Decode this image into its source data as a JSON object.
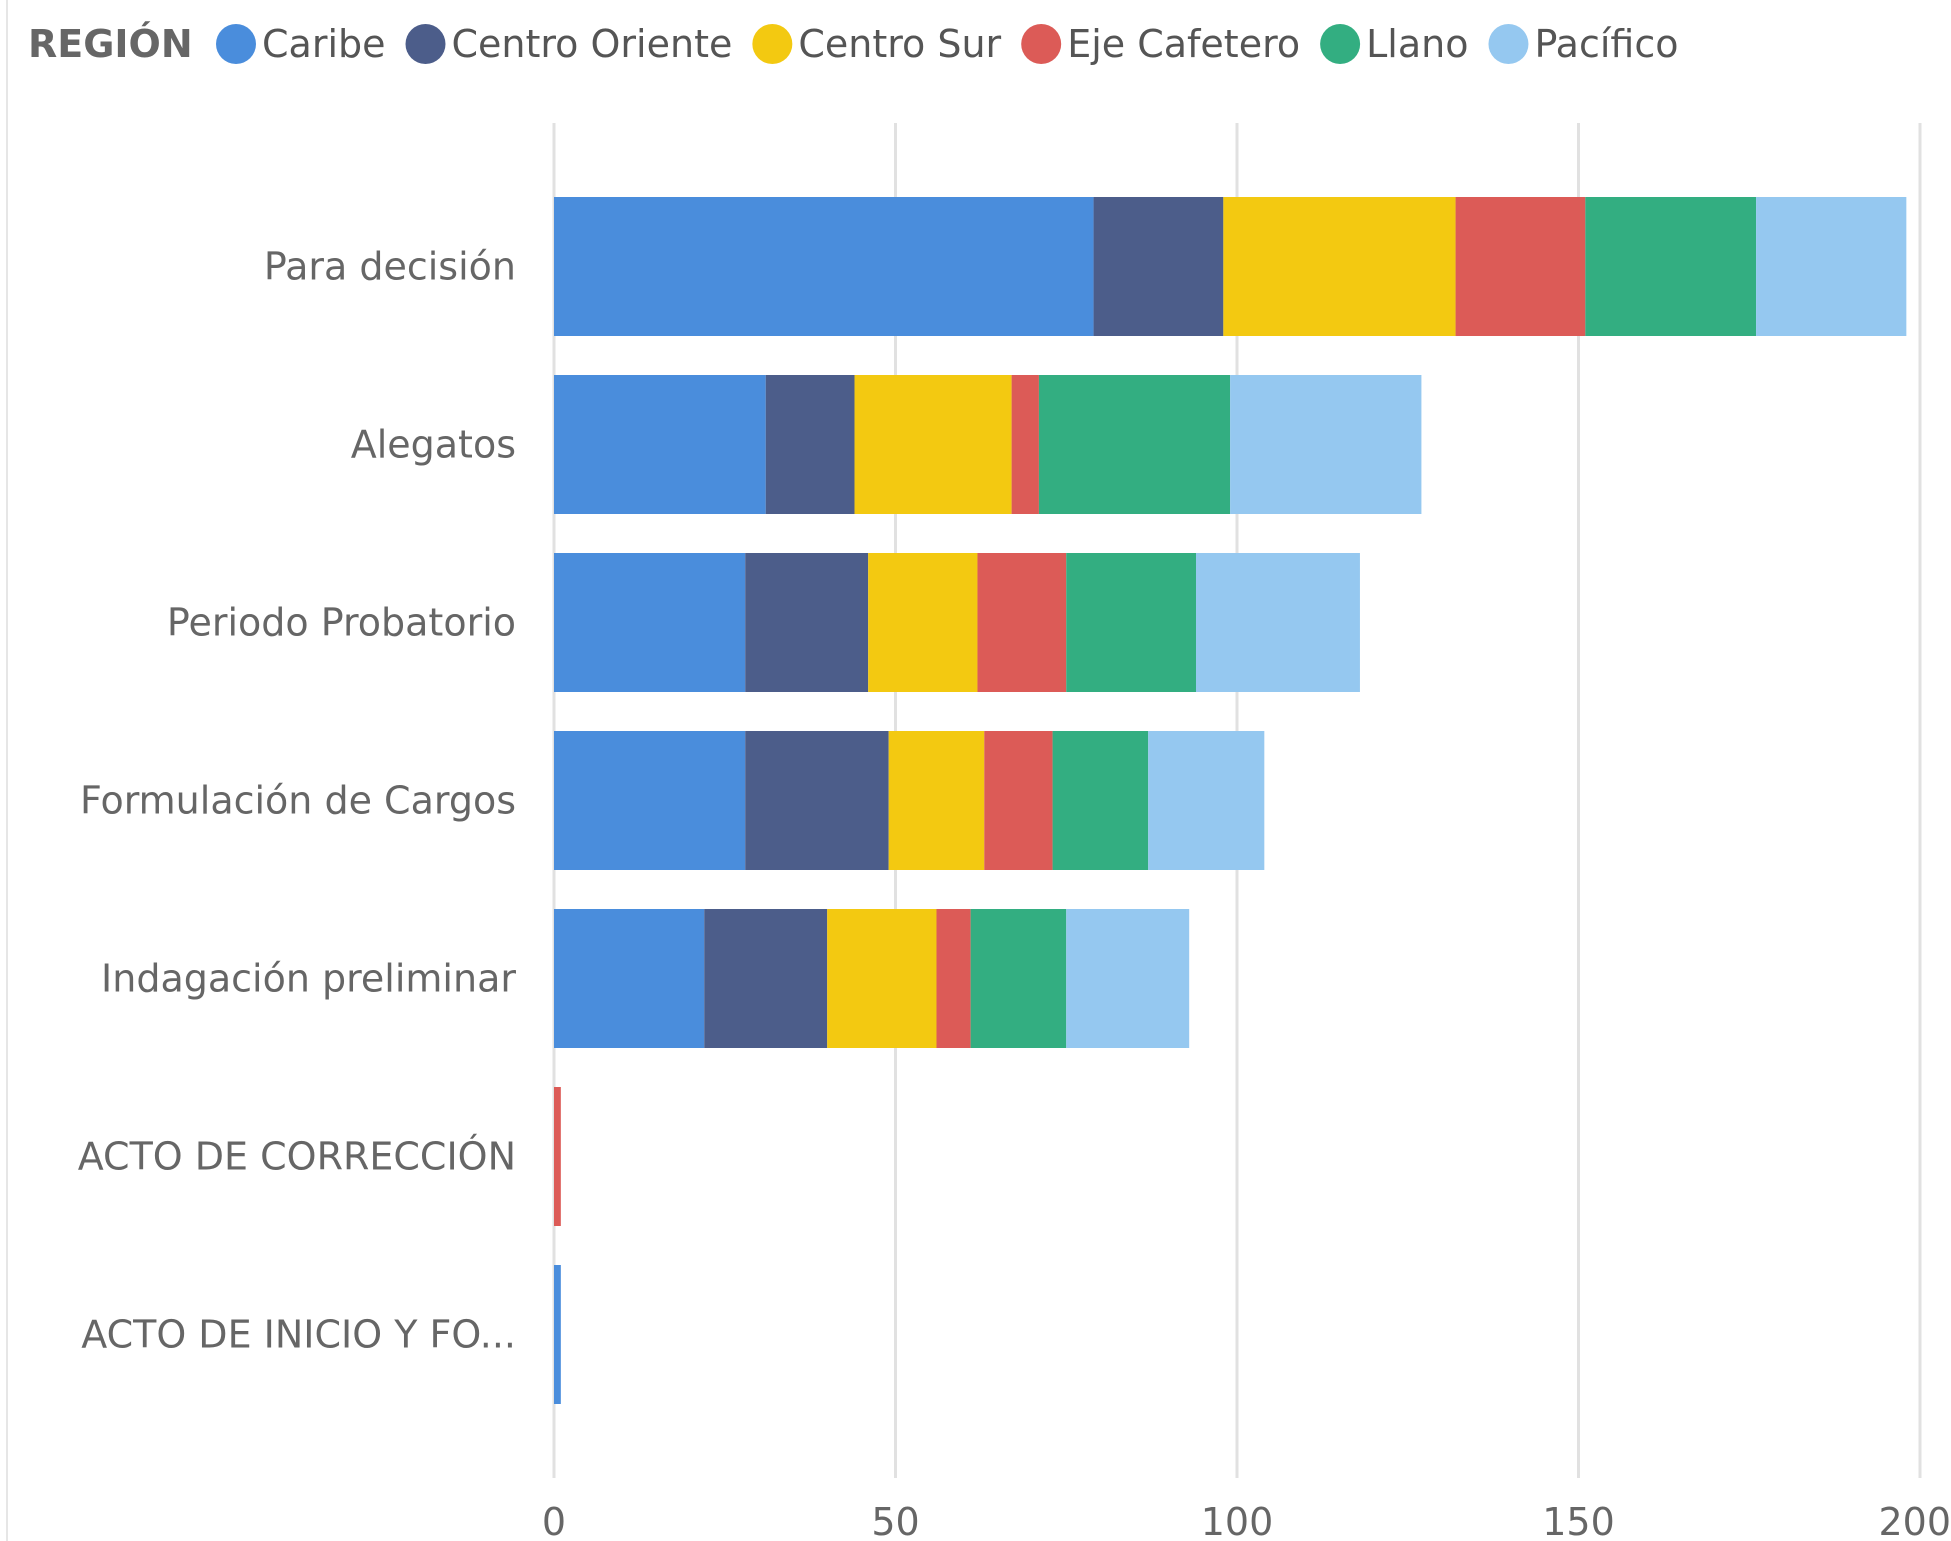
{
  "chart_data": {
    "type": "bar",
    "orientation": "horizontal",
    "stacked": true,
    "legend": {
      "title": "REGIÓN",
      "placement": "top-left"
    },
    "categories": [
      "Para decisión",
      "Alegatos",
      "Periodo Probatorio",
      "Formulación de Cargos",
      "Indagación preliminar",
      "ACTO DE CORRECCIÓN",
      "ACTO DE INICIO Y FO..."
    ],
    "series": [
      {
        "name": "Caribe",
        "color": "#4A8DDC",
        "values": [
          79,
          31,
          28,
          28,
          22,
          0,
          1
        ]
      },
      {
        "name": "Centro Oriente",
        "color": "#4C5D8A",
        "values": [
          19,
          13,
          18,
          21,
          18,
          0,
          0
        ]
      },
      {
        "name": "Centro Sur",
        "color": "#F3C911",
        "values": [
          34,
          23,
          16,
          14,
          16,
          0,
          0
        ]
      },
      {
        "name": "Eje Cafetero",
        "color": "#DC5B57",
        "values": [
          19,
          4,
          13,
          10,
          5,
          1,
          0
        ]
      },
      {
        "name": "Llano",
        "color": "#33AE81",
        "values": [
          25,
          28,
          19,
          14,
          14,
          0,
          0
        ]
      },
      {
        "name": "Pacífico",
        "color": "#95C8F0",
        "values": [
          22,
          28,
          24,
          17,
          18,
          0,
          0
        ]
      }
    ],
    "xaxis": {
      "min": 0,
      "max": 200,
      "ticks": [
        0,
        50,
        100,
        150,
        200
      ],
      "tick_labels": [
        "0",
        "50",
        "100",
        "150",
        "200"
      ]
    },
    "grid": true
  }
}
